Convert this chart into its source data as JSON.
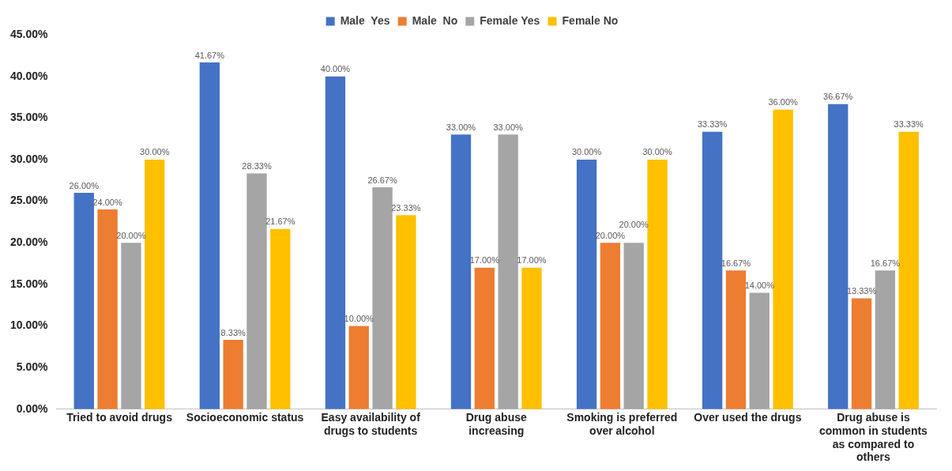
{
  "chart_data": {
    "type": "bar",
    "categories": [
      "Tried to avoid drugs",
      "Socioeconomic status",
      "Easy availability of drugs to students",
      "Drug abuse increasing",
      "Smoking is preferred over alcohol",
      "Over used the drugs",
      "Drug abuse is common in students as compared to others"
    ],
    "series": [
      {
        "name": "Male  Yes",
        "color": "#4472c4",
        "values": [
          26,
          41.67,
          40,
          33,
          30,
          33.33,
          36.67
        ],
        "value_labels": [
          "26.00%",
          "41.67%",
          "40.00%",
          "33.00%",
          "30.00%",
          "33.33%",
          "36.67%"
        ]
      },
      {
        "name": "Male  No",
        "color": "#ed7d31",
        "values": [
          24,
          8.33,
          10,
          17,
          20,
          16.67,
          13.33
        ],
        "value_labels": [
          "24.00%",
          "8.33%",
          "10.00%",
          "17.00%",
          "20.00%",
          "16.67%",
          "13.33%"
        ]
      },
      {
        "name": "Female Yes",
        "color": "#a5a5a5",
        "values": [
          20,
          28.33,
          26.67,
          33,
          20,
          14,
          16.67
        ],
        "value_labels": [
          "20.00%",
          "28.33%",
          "26.67%",
          "33.00%",
          "20.00%",
          "14.00%",
          "16.67%"
        ]
      },
      {
        "name": "Female No",
        "color": "#ffc000",
        "values": [
          30,
          21.67,
          23.33,
          17,
          30,
          36,
          33.33
        ],
        "value_labels": [
          "30.00%",
          "21.67%",
          "23.33%",
          "17.00%",
          "30.00%",
          "36.00%",
          "33.33%"
        ]
      }
    ],
    "ylim": [
      0,
      45
    ],
    "yticks": [
      {
        "value": 0,
        "label": "0.00%"
      },
      {
        "value": 5,
        "label": "5.00%"
      },
      {
        "value": 10,
        "label": "10.00%"
      },
      {
        "value": 15,
        "label": "15.00%"
      },
      {
        "value": 20,
        "label": "20.00%"
      },
      {
        "value": 25,
        "label": "25.00%"
      },
      {
        "value": 30,
        "label": "30.00%"
      },
      {
        "value": 35,
        "label": "35.00%"
      },
      {
        "value": 40,
        "label": "40.00%"
      },
      {
        "value": 45,
        "label": "45.00%"
      }
    ],
    "grid": false,
    "legend": "top"
  }
}
